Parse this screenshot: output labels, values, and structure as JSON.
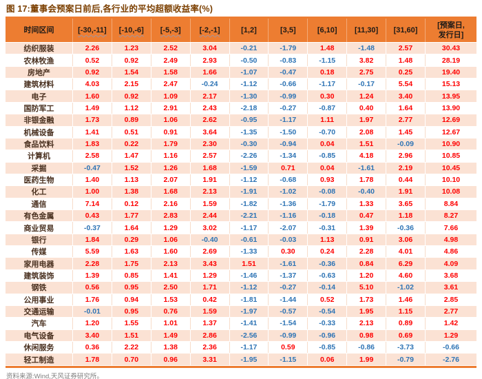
{
  "figure": {
    "title": "图 17:董事会预案日前后,各行业的平均超额收益率(%)",
    "source": "资料来源:Wind,天风证券研究所。"
  },
  "colors": {
    "accent_line": "#ED7D31",
    "header_bg": "#ED7D31",
    "band_row_bg": "#FBE2D4",
    "white_row_bg": "#FFFFFF",
    "positive_value": "#FE0000",
    "negative_value": "#2E74B5",
    "row_label_text": "#4A3120",
    "title_text": "#7B3F00",
    "source_text": "#7F7F7F"
  },
  "chart_data": {
    "type": "table",
    "title": "董事会预案日前后,各行业的平均超额收益率(%)",
    "unit": "%",
    "columns": [
      "时间区间",
      "[-30,-11]",
      "[-10,-6]",
      "[-5,-3]",
      "[-2,-1]",
      "[1,2]",
      "[3,5]",
      "[6,10]",
      "[11,30]",
      "[31,60]",
      "[预案日,\n发行日]"
    ],
    "rows": [
      {
        "industry": "纺织服装",
        "values": [
          "2.26",
          "1.23",
          "2.52",
          "3.04",
          "-0.21",
          "-1.79",
          "1.48",
          "-1.48",
          "2.57",
          "30.43"
        ]
      },
      {
        "industry": "农林牧渔",
        "values": [
          "0.52",
          "0.92",
          "2.49",
          "2.93",
          "-0.50",
          "-0.83",
          "-1.15",
          "3.82",
          "1.48",
          "28.19"
        ]
      },
      {
        "industry": "房地产",
        "values": [
          "0.92",
          "1.54",
          "1.58",
          "1.66",
          "-1.07",
          "-0.47",
          "0.18",
          "2.75",
          "0.25",
          "19.40"
        ]
      },
      {
        "industry": "建筑材料",
        "values": [
          "4.03",
          "2.15",
          "2.47",
          "-0.24",
          "-1.12",
          "-0.66",
          "-1.17",
          "-0.17",
          "5.54",
          "15.13"
        ]
      },
      {
        "industry": "电子",
        "values": [
          "1.60",
          "0.92",
          "1.09",
          "2.17",
          "-1.30",
          "-0.99",
          "0.30",
          "1.24",
          "3.40",
          "13.95"
        ]
      },
      {
        "industry": "国防军工",
        "values": [
          "1.49",
          "1.12",
          "2.91",
          "2.43",
          "-2.18",
          "-0.27",
          "-0.87",
          "0.40",
          "1.64",
          "13.90"
        ]
      },
      {
        "industry": "非银金融",
        "values": [
          "1.73",
          "0.89",
          "1.06",
          "2.62",
          "-0.95",
          "-1.17",
          "1.11",
          "1.97",
          "2.77",
          "12.69"
        ]
      },
      {
        "industry": "机械设备",
        "values": [
          "1.41",
          "0.51",
          "0.91",
          "3.64",
          "-1.35",
          "-1.50",
          "-0.70",
          "2.08",
          "1.45",
          "12.67"
        ]
      },
      {
        "industry": "食品饮料",
        "values": [
          "1.83",
          "0.22",
          "1.79",
          "2.30",
          "-0.30",
          "-0.94",
          "0.04",
          "1.51",
          "-0.09",
          "10.90"
        ]
      },
      {
        "industry": "计算机",
        "values": [
          "2.58",
          "1.47",
          "1.16",
          "2.57",
          "-2.26",
          "-1.34",
          "-0.85",
          "4.18",
          "2.96",
          "10.85"
        ]
      },
      {
        "industry": "采掘",
        "values": [
          "-0.47",
          "1.52",
          "1.26",
          "1.68",
          "-1.59",
          "0.71",
          "0.04",
          "-1.61",
          "2.19",
          "10.45"
        ]
      },
      {
        "industry": "医药生物",
        "values": [
          "1.40",
          "1.13",
          "2.07",
          "1.91",
          "-1.12",
          "-0.68",
          "0.93",
          "1.78",
          "0.44",
          "10.10"
        ]
      },
      {
        "industry": "化工",
        "values": [
          "1.00",
          "1.38",
          "1.68",
          "2.13",
          "-1.91",
          "-1.02",
          "-0.08",
          "-0.40",
          "1.91",
          "10.08"
        ]
      },
      {
        "industry": "通信",
        "values": [
          "7.14",
          "0.12",
          "2.16",
          "1.59",
          "-1.82",
          "-1.36",
          "-1.79",
          "1.33",
          "3.65",
          "8.84"
        ]
      },
      {
        "industry": "有色金属",
        "values": [
          "0.43",
          "1.77",
          "2.83",
          "2.44",
          "-2.21",
          "-1.16",
          "-0.18",
          "0.47",
          "1.18",
          "8.27"
        ]
      },
      {
        "industry": "商业贸易",
        "values": [
          "-0.37",
          "1.64",
          "1.29",
          "3.02",
          "-1.17",
          "-2.07",
          "-0.31",
          "1.39",
          "-0.36",
          "7.66"
        ]
      },
      {
        "industry": "银行",
        "values": [
          "1.84",
          "0.29",
          "1.06",
          "-0.40",
          "-0.61",
          "-0.03",
          "1.13",
          "0.91",
          "3.06",
          "4.98"
        ]
      },
      {
        "industry": "传媒",
        "values": [
          "5.59",
          "1.63",
          "1.60",
          "2.69",
          "-1.33",
          "0.30",
          "0.24",
          "2.28",
          "4.01",
          "4.86"
        ]
      },
      {
        "industry": "家用电器",
        "values": [
          "2.28",
          "1.75",
          "2.13",
          "3.43",
          "1.51",
          "-1.61",
          "-0.36",
          "0.84",
          "6.29",
          "4.09"
        ]
      },
      {
        "industry": "建筑装饰",
        "values": [
          "1.39",
          "0.85",
          "1.41",
          "1.29",
          "-1.46",
          "-1.37",
          "-0.63",
          "1.20",
          "4.60",
          "3.68"
        ]
      },
      {
        "industry": "钢铁",
        "values": [
          "0.56",
          "0.95",
          "2.50",
          "1.71",
          "-1.12",
          "-0.27",
          "-0.14",
          "5.10",
          "-1.02",
          "3.61"
        ]
      },
      {
        "industry": "公用事业",
        "values": [
          "1.76",
          "0.94",
          "1.53",
          "0.42",
          "-1.81",
          "-1.44",
          "0.52",
          "1.73",
          "1.46",
          "2.85"
        ]
      },
      {
        "industry": "交通运输",
        "values": [
          "-0.01",
          "0.95",
          "0.76",
          "1.59",
          "-1.97",
          "-0.57",
          "-0.54",
          "1.95",
          "1.15",
          "2.77"
        ]
      },
      {
        "industry": "汽车",
        "values": [
          "1.20",
          "1.55",
          "1.01",
          "1.37",
          "-1.41",
          "-1.54",
          "-0.33",
          "2.13",
          "0.89",
          "1.42"
        ]
      },
      {
        "industry": "电气设备",
        "values": [
          "3.40",
          "1.51",
          "1.49",
          "2.86",
          "-2.56",
          "-0.99",
          "-0.96",
          "0.98",
          "0.69",
          "1.29"
        ]
      },
      {
        "industry": "休闲服务",
        "values": [
          "0.36",
          "2.22",
          "1.38",
          "2.36",
          "-1.17",
          "0.59",
          "-0.85",
          "-0.86",
          "-3.73",
          "-0.66"
        ]
      },
      {
        "industry": "轻工制造",
        "values": [
          "1.78",
          "0.70",
          "0.96",
          "3.31",
          "-1.95",
          "-1.15",
          "0.06",
          "1.99",
          "-0.79",
          "-2.76"
        ]
      }
    ]
  }
}
